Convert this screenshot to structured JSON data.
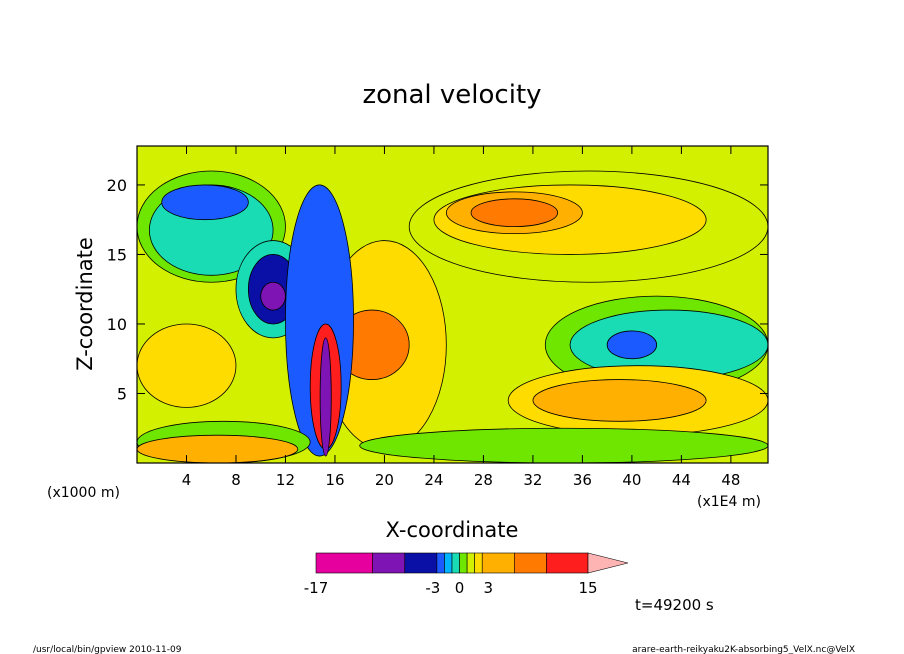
{
  "chart_data": {
    "type": "heatmap",
    "title": "zonal velocity",
    "xlabel": "X-coordinate",
    "ylabel": "Z-coordinate",
    "x_unit_left": "(x1000 m)",
    "x_unit_right": "(x1E4 m)",
    "xlim": [
      0,
      51
    ],
    "ylim": [
      0,
      22.8
    ],
    "x_ticks": [
      4,
      8,
      12,
      16,
      20,
      24,
      28,
      32,
      36,
      40,
      44,
      48
    ],
    "y_ticks": [
      5,
      10,
      15,
      20
    ],
    "colorbar": {
      "levels": [
        -17,
        -12,
        -7,
        -3,
        -2,
        -1,
        0,
        1,
        2,
        3,
        7,
        12,
        15
      ],
      "colors": [
        "#e6009e",
        "#7d14b3",
        "#0a10a5",
        "#1a5aff",
        "#00b4ff",
        "#19dcb4",
        "#6ee600",
        "#d2f000",
        "#ffdc00",
        "#ffb000",
        "#ff7a00",
        "#ff1e1e",
        "#ff8080"
      ],
      "extend_color": "#ffb4b4",
      "labels": [
        {
          "text": "-17",
          "value": -17
        },
        {
          "text": "-3",
          "value": -3
        },
        {
          "text": "0",
          "value": 0
        },
        {
          "text": "3",
          "value": 3
        },
        {
          "text": "15",
          "value": 15
        }
      ]
    },
    "time_label": "t=49200 s",
    "regions": [
      {
        "level": 1,
        "x": [
          0,
          51
        ],
        "y": [
          0,
          22.8
        ],
        "shape": "rect"
      },
      {
        "level": 0,
        "x": [
          0,
          12
        ],
        "y": [
          13,
          21
        ]
      },
      {
        "level": -1,
        "x": [
          1,
          11
        ],
        "y": [
          13.5,
          20
        ]
      },
      {
        "level": -3,
        "x": [
          2,
          9
        ],
        "y": [
          17.5,
          20
        ]
      },
      {
        "level": 1,
        "x": [
          22,
          51
        ],
        "y": [
          13,
          21
        ]
      },
      {
        "level": 2,
        "x": [
          24,
          46
        ],
        "y": [
          15,
          20
        ]
      },
      {
        "level": 3,
        "x": [
          25,
          36
        ],
        "y": [
          16.5,
          19.5
        ]
      },
      {
        "level": 7,
        "x": [
          27,
          34
        ],
        "y": [
          17,
          19
        ]
      },
      {
        "level": -1,
        "x": [
          8,
          14
        ],
        "y": [
          9,
          16
        ]
      },
      {
        "level": -7,
        "x": [
          9,
          13
        ],
        "y": [
          10,
          15
        ]
      },
      {
        "level": -12,
        "x": [
          10,
          12
        ],
        "y": [
          11,
          13
        ]
      },
      {
        "level": 2,
        "x": [
          15,
          25
        ],
        "y": [
          1,
          16
        ]
      },
      {
        "level": 7,
        "x": [
          16,
          22
        ],
        "y": [
          6,
          11
        ]
      },
      {
        "level": -3,
        "x": [
          12,
          17.5
        ],
        "y": [
          0.5,
          20
        ]
      },
      {
        "level": 12,
        "x": [
          14,
          16.5
        ],
        "y": [
          1,
          10
        ]
      },
      {
        "level": -12,
        "x": [
          14.8,
          15.7
        ],
        "y": [
          0.5,
          9
        ]
      },
      {
        "level": 0,
        "x": [
          0,
          14
        ],
        "y": [
          0,
          3
        ]
      },
      {
        "level": 3,
        "x": [
          0,
          13
        ],
        "y": [
          0,
          2
        ]
      },
      {
        "level": 0,
        "x": [
          33,
          51
        ],
        "y": [
          5,
          12
        ]
      },
      {
        "level": -1,
        "x": [
          35,
          51
        ],
        "y": [
          6,
          11
        ]
      },
      {
        "level": -3,
        "x": [
          38,
          42
        ],
        "y": [
          7.5,
          9.5
        ]
      },
      {
        "level": 2,
        "x": [
          30,
          51
        ],
        "y": [
          2,
          7
        ]
      },
      {
        "level": 3,
        "x": [
          32,
          46
        ],
        "y": [
          3,
          6
        ]
      },
      {
        "level": 0,
        "x": [
          18,
          51
        ],
        "y": [
          0,
          2.5
        ]
      },
      {
        "level": 2,
        "x": [
          0,
          8
        ],
        "y": [
          4,
          10
        ]
      }
    ]
  },
  "footer": {
    "left": "/usr/local/bin/gpview  2010-11-09",
    "right": "arare-earth-reikyaku2K-absorbing5_VelX.nc@VelX"
  }
}
